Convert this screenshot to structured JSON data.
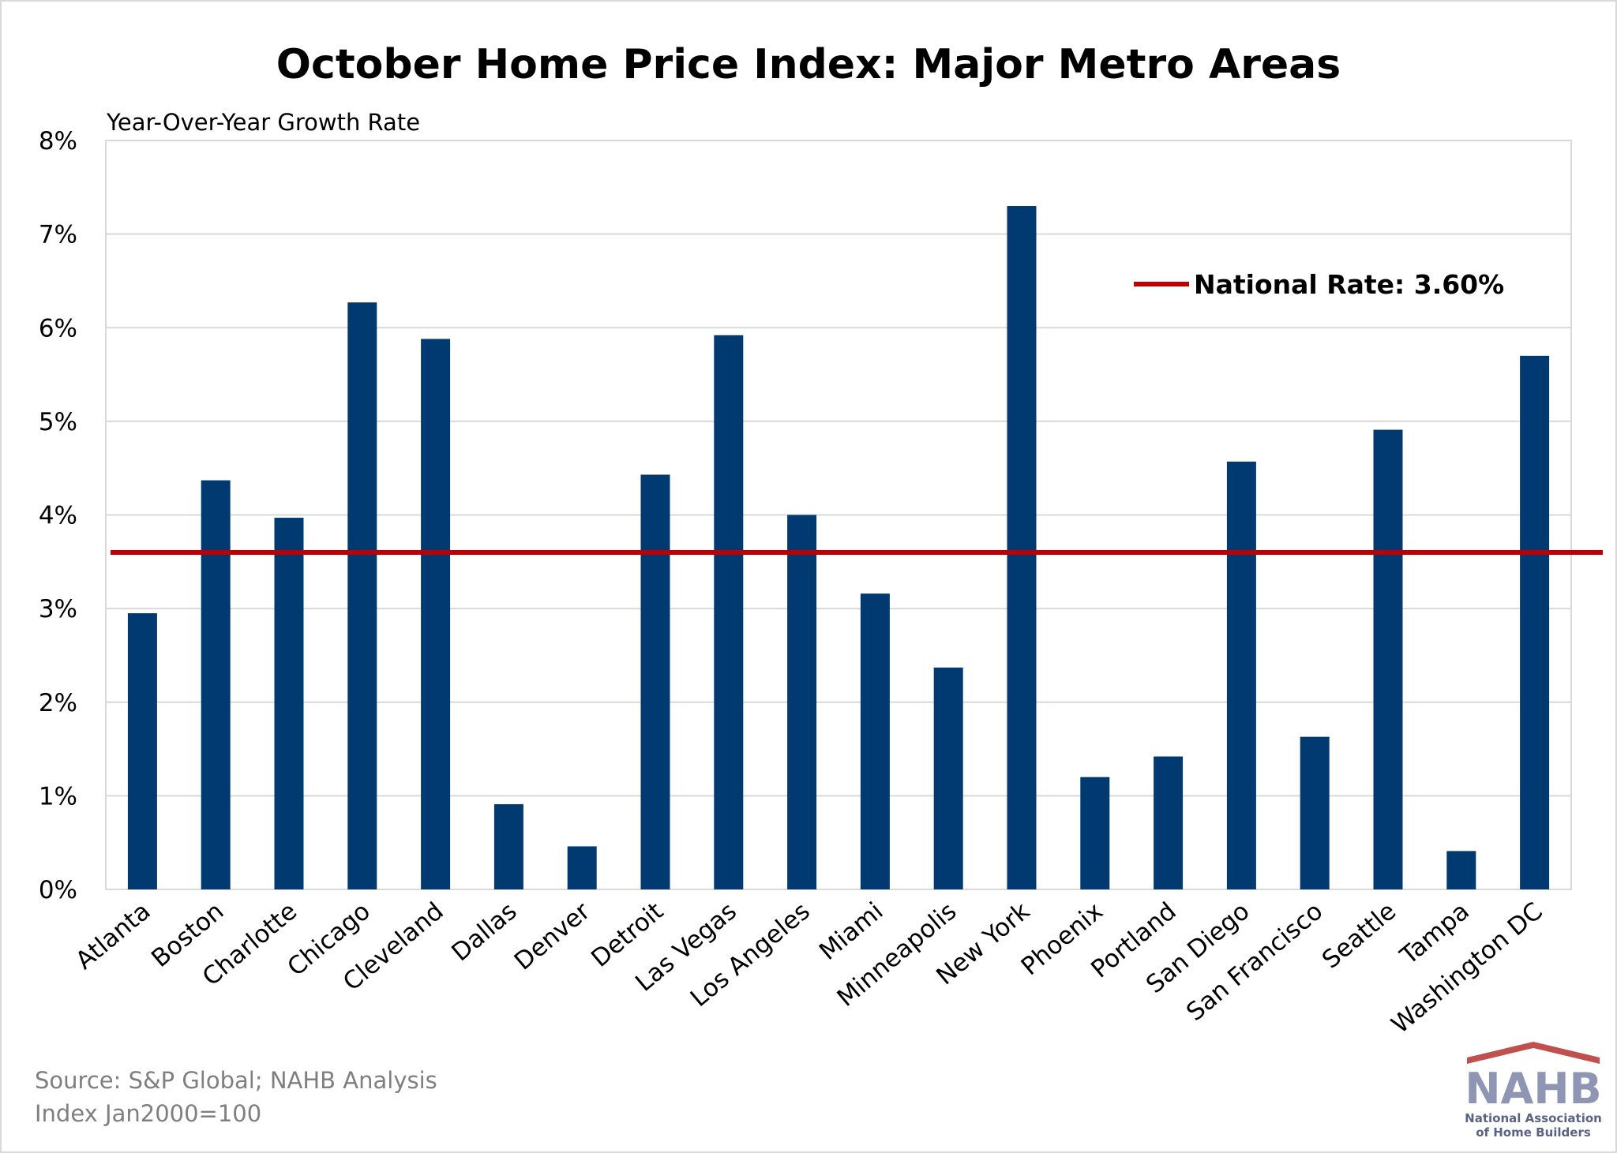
{
  "chart_data": {
    "type": "bar",
    "title": "October Home Price Index: Major Metro Areas",
    "ylabel": "Year-Over-Year Growth Rate",
    "xlabel": "",
    "ylim": [
      0,
      8
    ],
    "yticks": [
      "0%",
      "1%",
      "2%",
      "3%",
      "4%",
      "5%",
      "6%",
      "7%",
      "8%"
    ],
    "grid": true,
    "categories": [
      "Atlanta",
      "Boston",
      "Charlotte",
      "Chicago",
      "Cleveland",
      "Dallas",
      "Denver",
      "Detroit",
      "Las Vegas",
      "Los Angeles",
      "Miami",
      "Minneapolis",
      "New York",
      "Phoenix",
      "Portland",
      "San Diego",
      "San Francisco",
      "Seattle",
      "Tampa",
      "Washington DC"
    ],
    "values": [
      2.95,
      4.37,
      3.97,
      6.27,
      5.88,
      0.91,
      0.46,
      4.43,
      5.92,
      4.0,
      3.16,
      2.37,
      7.3,
      1.2,
      1.42,
      4.57,
      1.63,
      4.91,
      0.41,
      5.7
    ],
    "bar_color": "#003a70",
    "reference_line": {
      "value": 3.6,
      "label": "National Rate: 3.60%",
      "color": "#c00000"
    },
    "legend_position": "top-right"
  },
  "footer": {
    "source": "Source: S&P Global; NAHB Analysis",
    "note": "Index Jan2000=100"
  },
  "logo": {
    "name": "NAHB",
    "subtitle_line1": "National Association",
    "subtitle_line2": "of Home Builders",
    "colors": {
      "roof": "#c0504d",
      "letters": "#8e96b3"
    }
  }
}
